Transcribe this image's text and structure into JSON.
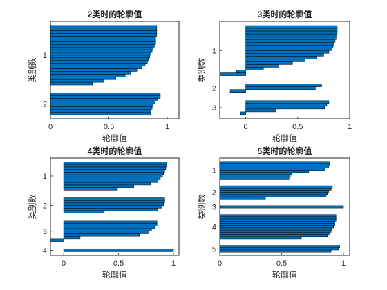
{
  "figure": {
    "background": "#ffffff"
  },
  "style": {
    "bar_color": "#0072BD",
    "bar_edge": "#000000",
    "axis_color": "#262626"
  },
  "chart_data": [
    {
      "type": "bar",
      "orientation": "horizontal",
      "title": "2类时的轮廓值",
      "xlabel": "轮廓值",
      "ylabel": "类别数",
      "xlim": [
        0,
        1.1
      ],
      "xticks": [
        "0",
        "0.5",
        "1"
      ],
      "xtick_values": [
        0,
        0.5,
        1
      ],
      "grid": false,
      "clusters": [
        {
          "label": "1",
          "values": [
            0.91,
            0.91,
            0.91,
            0.91,
            0.9,
            0.9,
            0.9,
            0.89,
            0.88,
            0.87,
            0.86,
            0.85,
            0.84,
            0.83,
            0.81,
            0.78,
            0.74,
            0.69,
            0.64,
            0.56,
            0.46,
            0.36
          ]
        },
        {
          "label": "2",
          "values": [
            0.94,
            0.94,
            0.92,
            0.89,
            0.88,
            0.87,
            0.86,
            0.86
          ]
        }
      ]
    },
    {
      "type": "bar",
      "orientation": "horizontal",
      "title": "3类时的轮廓值",
      "xlabel": "轮廓值",
      "ylabel": "类别数",
      "xlim": [
        -0.25,
        1.0
      ],
      "xticks": [
        "0",
        "0.5",
        "1"
      ],
      "xtick_values": [
        0,
        0.5,
        1
      ],
      "grid": false,
      "clusters": [
        {
          "label": "1",
          "values": [
            0.88,
            0.88,
            0.88,
            0.87,
            0.87,
            0.86,
            0.85,
            0.84,
            0.83,
            0.8,
            0.75,
            0.68,
            0.57,
            0.45,
            0.32,
            0.17,
            -0.09,
            -0.24
          ]
        },
        {
          "label": "2",
          "values": [
            0.73,
            0.67,
            -0.15
          ]
        },
        {
          "label": "3",
          "values": [
            0.8,
            0.78,
            0.76,
            0.29,
            -0.05
          ]
        }
      ]
    },
    {
      "type": "bar",
      "orientation": "horizontal",
      "title": "4类时的轮廓值",
      "xlabel": "轮廓值",
      "ylabel": "类别数",
      "xlim": [
        -0.12,
        1.05
      ],
      "xticks": [
        "0",
        "0.5",
        "1"
      ],
      "xtick_values": [
        0,
        0.5,
        1
      ],
      "grid": false,
      "clusters": [
        {
          "label": "1",
          "values": [
            0.94,
            0.94,
            0.93,
            0.92,
            0.91,
            0.9,
            0.88,
            0.86,
            0.79,
            0.64,
            0.49
          ]
        },
        {
          "label": "2",
          "values": [
            0.92,
            0.92,
            0.91,
            0.89,
            0.86,
            0.37
          ]
        },
        {
          "label": "3",
          "values": [
            0.85,
            0.85,
            0.83,
            0.8,
            0.77,
            0.69,
            0.15,
            -0.12
          ]
        },
        {
          "label": "4",
          "values": [
            1.0
          ]
        }
      ]
    },
    {
      "type": "bar",
      "orientation": "horizontal",
      "title": "5类时的轮廓值",
      "xlabel": "轮廓值",
      "ylabel": "类别数",
      "xlim": [
        0,
        1.05
      ],
      "xticks": [
        "0",
        "0.5",
        "1"
      ],
      "xtick_values": [
        0,
        0.5,
        1
      ],
      "grid": false,
      "clusters": [
        {
          "label": "1",
          "values": [
            0.89,
            0.89,
            0.88,
            0.85,
            0.72,
            0.58,
            0.57,
            0.56
          ]
        },
        {
          "label": "2",
          "values": [
            0.91,
            0.9,
            0.88,
            0.87,
            0.86,
            0.37
          ]
        },
        {
          "label": "3",
          "values": [
            1.0
          ]
        },
        {
          "label": "4",
          "values": [
            0.94,
            0.94,
            0.94,
            0.93,
            0.93,
            0.92,
            0.91,
            0.9,
            0.89,
            0.87,
            0.66
          ]
        },
        {
          "label": "5",
          "values": [
            0.97,
            0.96,
            0.9
          ]
        }
      ]
    }
  ]
}
